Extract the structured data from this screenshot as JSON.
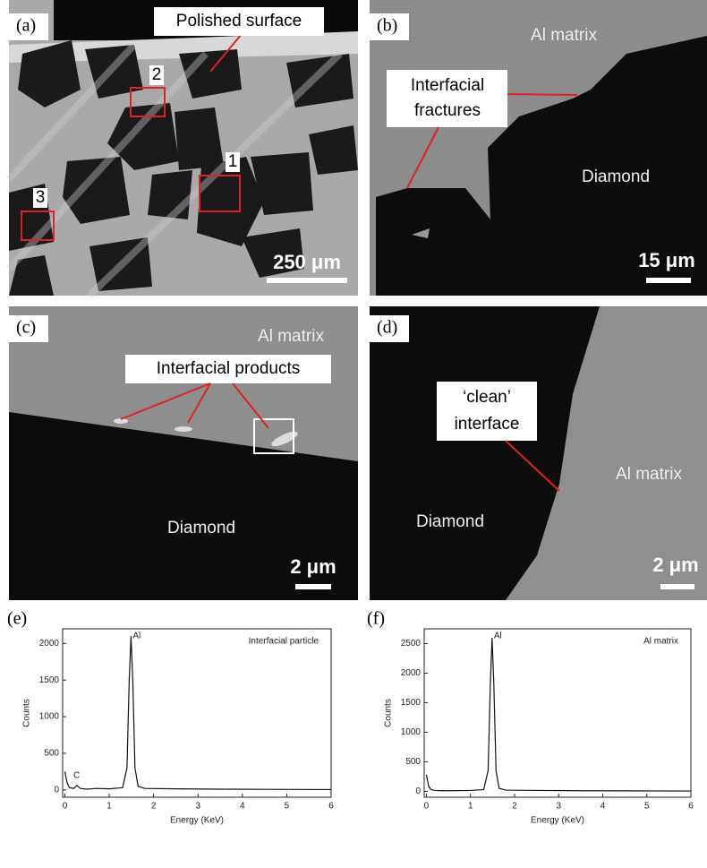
{
  "panels": {
    "a": {
      "label": "(a)",
      "callout": "Polished surface",
      "regions": [
        "1",
        "2",
        "3"
      ],
      "scale_bar": "250 μm"
    },
    "b": {
      "label": "(b)",
      "matrix": "Al matrix",
      "callout": [
        "Interfacial",
        "fractures"
      ],
      "diamond": "Diamond",
      "scale_bar": "15 μm"
    },
    "c": {
      "label": "(c)",
      "matrix": "Al matrix",
      "callout": "Interfacial products",
      "diamond": "Diamond",
      "scale_bar": "2 μm"
    },
    "d": {
      "label": "(d)",
      "callout": [
        "‘clean’",
        "interface"
      ],
      "matrix": "Al matrix",
      "diamond": "Diamond",
      "scale_bar": "2 μm"
    },
    "e": {
      "label": "(e)"
    },
    "f": {
      "label": "(f)"
    }
  },
  "chart_data": [
    {
      "type": "line",
      "title": "Interfacial particle",
      "annotations": [
        "Al",
        "C"
      ],
      "x_label": "Energy (KeV)",
      "y_label": "Counts",
      "x": [
        0,
        0.05,
        0.1,
        0.2,
        0.27,
        0.35,
        0.5,
        0.7,
        1.0,
        1.3,
        1.4,
        1.45,
        1.49,
        1.53,
        1.58,
        1.65,
        1.8,
        2.5,
        3.5,
        4.5,
        6
      ],
      "series": [
        {
          "color": "#111",
          "values": [
            250,
            100,
            30,
            20,
            60,
            20,
            10,
            20,
            15,
            30,
            300,
            1500,
            2100,
            1500,
            300,
            50,
            20,
            15,
            10,
            8,
            5
          ]
        }
      ],
      "xlim": [
        -0.05,
        6
      ],
      "xticks": [
        0,
        1,
        2,
        3,
        4,
        5,
        6
      ],
      "ylim": [
        -100,
        2200
      ],
      "yticks": [
        0,
        500,
        1000,
        1500,
        2000
      ]
    },
    {
      "type": "line",
      "title": "Al matrix",
      "annotations": [
        "Al"
      ],
      "x_label": "Energy (KeV)",
      "y_label": "Counts",
      "x": [
        0,
        0.05,
        0.1,
        0.2,
        0.35,
        0.5,
        0.7,
        1.0,
        1.3,
        1.4,
        1.45,
        1.49,
        1.53,
        1.58,
        1.65,
        1.8,
        2.5,
        3.5,
        4.5,
        6
      ],
      "series": [
        {
          "color": "#111",
          "values": [
            280,
            90,
            30,
            15,
            10,
            10,
            12,
            15,
            30,
            350,
            1800,
            2600,
            1800,
            350,
            50,
            20,
            15,
            10,
            8,
            5
          ]
        }
      ],
      "xlim": [
        -0.05,
        6
      ],
      "xticks": [
        0,
        1,
        2,
        3,
        4,
        5,
        6
      ],
      "ylim": [
        -100,
        2750
      ],
      "yticks": [
        0,
        500,
        1000,
        1500,
        2000,
        2500
      ]
    }
  ]
}
